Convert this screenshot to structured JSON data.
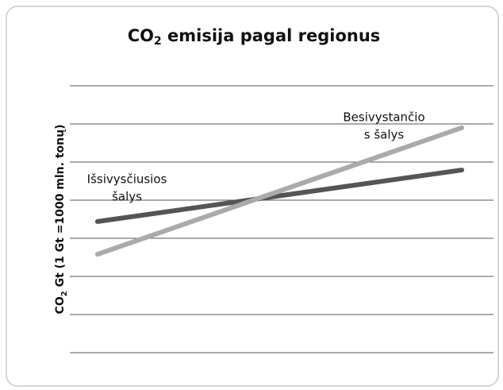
{
  "chart_data": {
    "type": "line",
    "title": {
      "main": "CO",
      "sub": "2",
      "rest": " emisija pagal regionus"
    },
    "ylabel": {
      "main": "CO",
      "sub": "2",
      "rest": "  Gt (1 Gt =1000 mln. tonų)"
    },
    "x": [
      1,
      2
    ],
    "xlim": [
      0.924,
      2.087
    ],
    "ylim": [
      0,
      7
    ],
    "yticks": [
      0,
      1,
      2,
      3,
      4,
      5,
      6,
      7
    ],
    "grid": true,
    "series": [
      {
        "name": [
          "Išsivysčiusios",
          "šalys"
        ],
        "color": "#555555",
        "values": [
          3.44,
          4.79
        ]
      },
      {
        "name": [
          "Besivystančio",
          "s šalys"
        ],
        "color": "#aaaaaa",
        "values": [
          2.58,
          5.9
        ]
      }
    ]
  }
}
